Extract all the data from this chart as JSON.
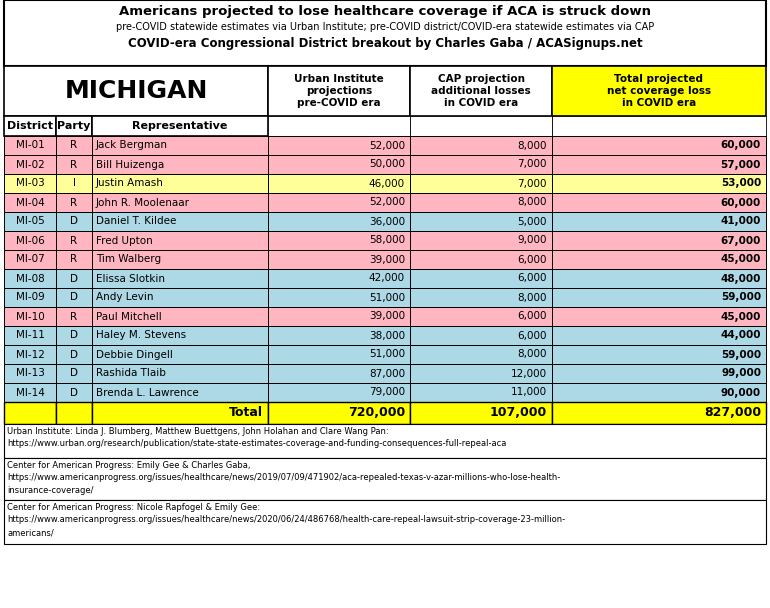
{
  "title_line1": "Americans projected to lose healthcare coverage if ACA is struck down",
  "title_line2": "pre-COVID statewide estimates via Urban Institute; pre-COVID district/COVID-era statewide estimates via CAP",
  "title_line3": "COVID-era Congressional District breakout by Charles Gaba / ACASignups.net",
  "state": "MICHIGAN",
  "rows": [
    [
      "MI-01",
      "R",
      "Jack Bergman",
      "52,000",
      "8,000",
      "60,000"
    ],
    [
      "MI-02",
      "R",
      "Bill Huizenga",
      "50,000",
      "7,000",
      "57,000"
    ],
    [
      "MI-03",
      "I",
      "Justin Amash",
      "46,000",
      "7,000",
      "53,000"
    ],
    [
      "MI-04",
      "R",
      "John R. Moolenaar",
      "52,000",
      "8,000",
      "60,000"
    ],
    [
      "MI-05",
      "D",
      "Daniel T. Kildee",
      "36,000",
      "5,000",
      "41,000"
    ],
    [
      "MI-06",
      "R",
      "Fred Upton",
      "58,000",
      "9,000",
      "67,000"
    ],
    [
      "MI-07",
      "R",
      "Tim Walberg",
      "39,000",
      "6,000",
      "45,000"
    ],
    [
      "MI-08",
      "D",
      "Elissa Slotkin",
      "42,000",
      "6,000",
      "48,000"
    ],
    [
      "MI-09",
      "D",
      "Andy Levin",
      "51,000",
      "8,000",
      "59,000"
    ],
    [
      "MI-10",
      "R",
      "Paul Mitchell",
      "39,000",
      "6,000",
      "45,000"
    ],
    [
      "MI-11",
      "D",
      "Haley M. Stevens",
      "38,000",
      "6,000",
      "44,000"
    ],
    [
      "MI-12",
      "D",
      "Debbie Dingell",
      "51,000",
      "8,000",
      "59,000"
    ],
    [
      "MI-13",
      "D",
      "Rashida Tlaib",
      "87,000",
      "12,000",
      "99,000"
    ],
    [
      "MI-14",
      "D",
      "Brenda L. Lawrence",
      "79,000",
      "11,000",
      "90,000"
    ]
  ],
  "total_row": [
    "",
    "",
    "Total",
    "720,000",
    "107,000",
    "827,000"
  ],
  "color_R": "#FFB6C1",
  "color_D": "#ADD8E6",
  "color_I": "#FFFF99",
  "color_total": "#FFFF00",
  "color_last_col_header": "#FFFF00",
  "footnote1": "Urban Institute: Linda J. Blumberg, Matthew Buettgens, John Holahan and Clare Wang Pan:\nhttps://www.urban.org/research/publication/state-state-estimates-coverage-and-funding-consequences-full-repeal-aca",
  "footnote2": "Center for American Progress: Emily Gee & Charles Gaba,\nhttps://www.americanprogress.org/issues/healthcare/news/2019/07/09/471902/aca-repealed-texas-v-azar-millions-who-lose-health-\ninsurance-coverage/",
  "footnote3": "Center for American Progress: Nicole Rapfogel & Emily Gee:\nhttps://www.americanprogress.org/issues/healthcare/news/2020/06/24/486768/health-care-repeal-lawsuit-strip-coverage-23-million-\namericans/"
}
